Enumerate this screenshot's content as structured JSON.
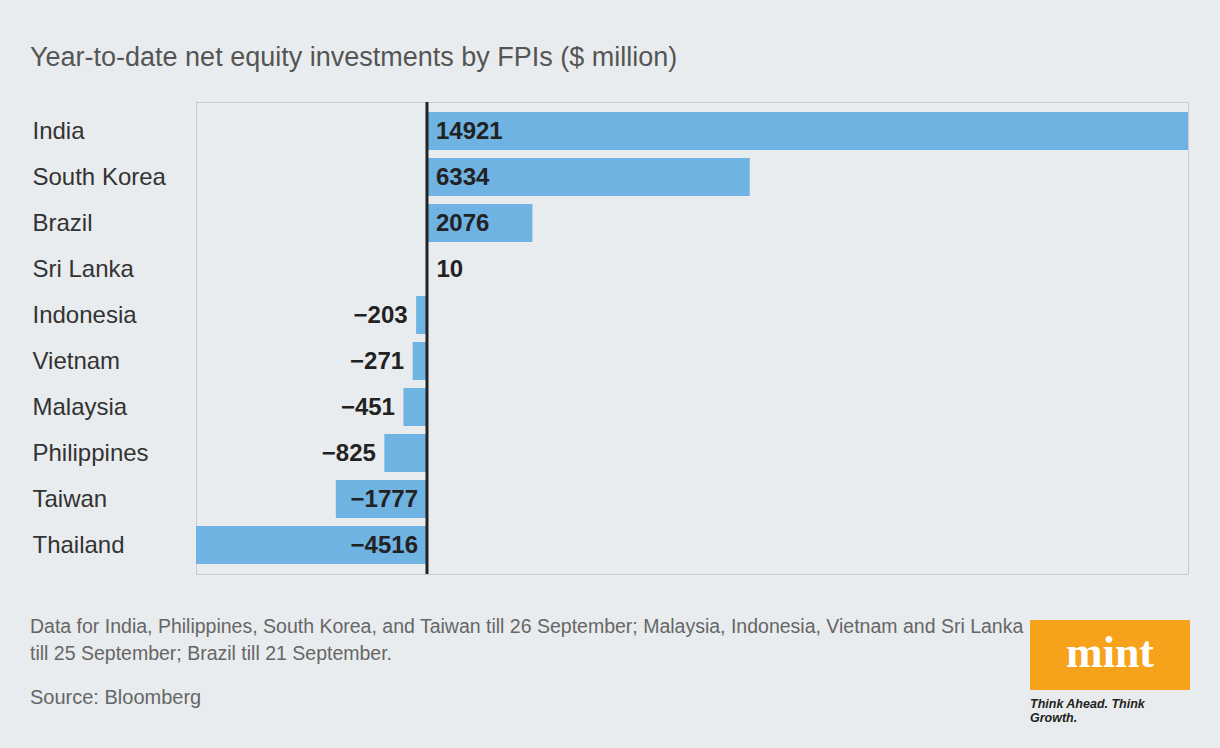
{
  "chart_data": {
    "type": "bar",
    "title": "Year-to-date net equity investments by FPIs ($ million)",
    "categories": [
      "India",
      "South Korea",
      "Brazil",
      "Sri Lanka",
      "Indonesia",
      "Vietnam",
      "Malaysia",
      "Philippines",
      "Taiwan",
      "Thailand"
    ],
    "values": [
      14921,
      6334,
      2076,
      10,
      -203,
      -271,
      -451,
      -825,
      -1777,
      -4516
    ],
    "value_labels": [
      "14921",
      "6334",
      "2076",
      "10",
      "−203",
      "−271",
      "−451",
      "−825",
      "−1777",
      "−4516"
    ],
    "color": "#6fb3e3",
    "orientation": "horizontal",
    "data_labels": true,
    "tick_labels": "y",
    "grid": false,
    "xlim": [
      -4516,
      14921
    ],
    "xticks": [
      0
    ],
    "note": "Data for India, Philippines, South Korea, and Taiwan till 26 September; Malaysia, Indonesia, Vietnam and Sri Lanka till 25 September; Brazil till 21 September.",
    "source": "Source: Bloomberg",
    "brand": "mint",
    "brand_tagline": "Think Ahead. Think Growth."
  }
}
